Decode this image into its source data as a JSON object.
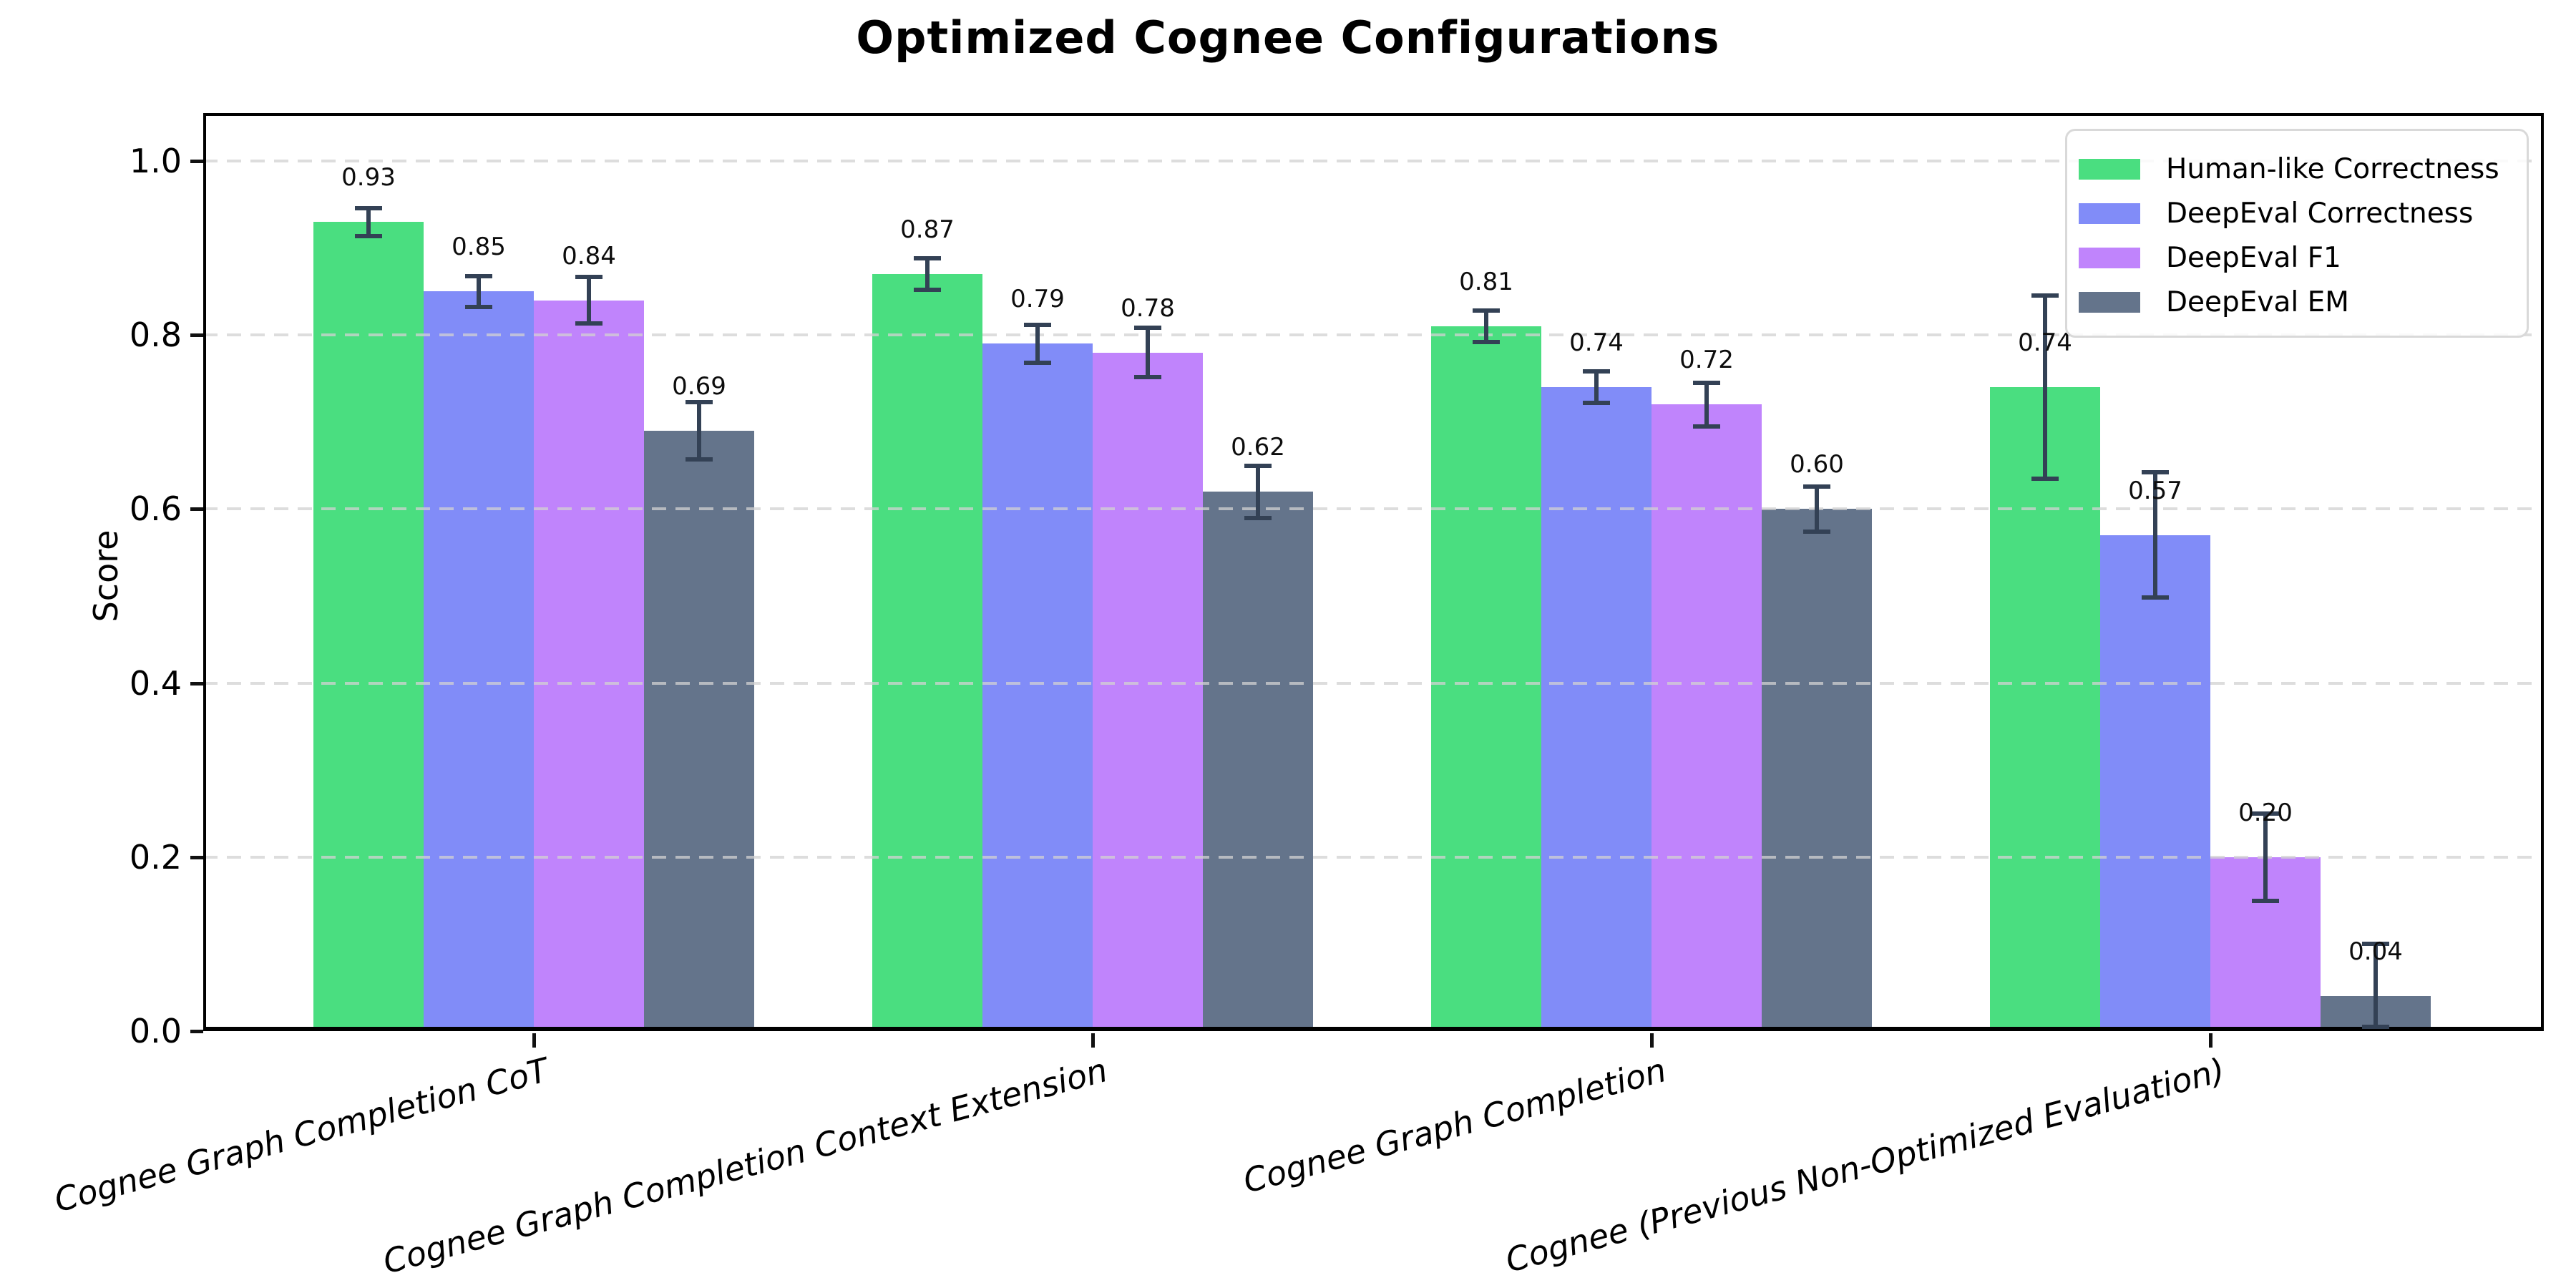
{
  "title": "Optimized Cognee Configurations",
  "ylabel": "Score",
  "colors": {
    "human_like": "#4ade80",
    "deepeval_correctness": "#818cf8",
    "deepeval_f1": "#c084fc",
    "deepeval_em": "#64748b",
    "error_bar": "#334155",
    "grid": "#d2d2d2",
    "axis": "#000000"
  },
  "chart_data": {
    "type": "bar",
    "title": "Optimized Cognee Configurations",
    "xlabel": "",
    "ylabel": "Score",
    "ylim": [
      0,
      1.05
    ],
    "yticks": [
      "0.0",
      "0.2",
      "0.4",
      "0.6",
      "0.8",
      "1.0"
    ],
    "ytick_values": [
      0,
      0.2,
      0.4,
      0.6,
      0.8,
      1.0
    ],
    "grid": "horizontal dashed",
    "legend_position": "upper right",
    "categories": [
      "Cognee Graph Completion CoT",
      "Cognee Graph Completion Context Extension",
      "Cognee Graph Completion",
      "Cognee (Previous Non-Optimized Evaluation)"
    ],
    "series": [
      {
        "name": "Human-like Correctness",
        "color": "#4ade80",
        "values": [
          0.93,
          0.87,
          0.81,
          0.74
        ],
        "err_up": [
          0.016,
          0.018,
          0.018,
          0.105
        ],
        "err_down": [
          0.016,
          0.018,
          0.018,
          0.105
        ]
      },
      {
        "name": "DeepEval Correctness",
        "color": "#818cf8",
        "values": [
          0.85,
          0.79,
          0.74,
          0.57
        ],
        "err_up": [
          0.018,
          0.022,
          0.018,
          0.072
        ],
        "err_down": [
          0.018,
          0.022,
          0.018,
          0.072
        ]
      },
      {
        "name": "DeepEval F1",
        "color": "#c084fc",
        "values": [
          0.84,
          0.78,
          0.72,
          0.2
        ],
        "err_up": [
          0.027,
          0.028,
          0.025,
          0.05
        ],
        "err_down": [
          0.027,
          0.028,
          0.025,
          0.05
        ]
      },
      {
        "name": "DeepEval EM",
        "color": "#64748b",
        "values": [
          0.69,
          0.62,
          0.6,
          0.04
        ],
        "err_up": [
          0.033,
          0.03,
          0.026,
          0.06
        ],
        "err_down": [
          0.033,
          0.03,
          0.026,
          0.035
        ]
      }
    ]
  }
}
